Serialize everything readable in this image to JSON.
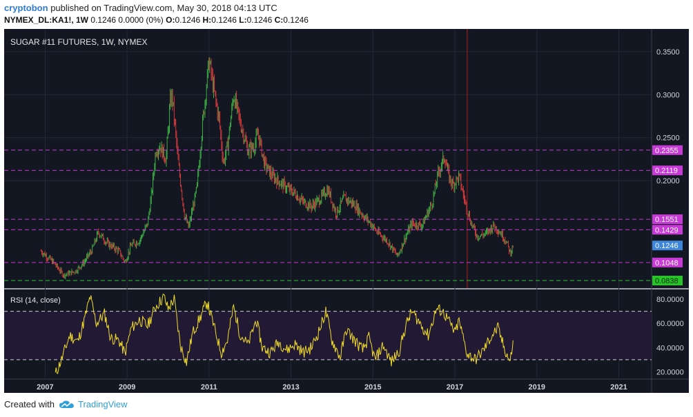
{
  "header": {
    "author": "cryptobon",
    "published": "published on TradingView.com, May 30, 2018 04:13 UTC",
    "symbol": "NYMEX_DL:KA1!, 1W",
    "change": "0.1246 0.0000 (0%)",
    "o_label": "O:",
    "o_value": "0.1246",
    "h_label": "H:",
    "h_value": "0.1246",
    "l_label": "L:",
    "l_value": "0.1246",
    "c_label": "C:",
    "c_value": "0.1246"
  },
  "footer": {
    "created_with": "Created with",
    "brand": "TradingView",
    "logo_icon": "tradingview-cloud-icon"
  },
  "colors": {
    "background": "#131722",
    "rsi_band": "#221a35",
    "bull": "#3cb043",
    "bear": "#d43a3a",
    "level": "#c83ad6",
    "support": "#29c429",
    "rsi_line": "#f2dd2a",
    "price_tag": "#3d86d9",
    "vertical_marker": "#b01e1e",
    "grid": "#232838",
    "axis_text": "#d1d4dc"
  },
  "chart_data": [
    {
      "type": "candlestick",
      "title": "SUGAR #11 FUTURES, 1W, NYMEX",
      "x_range": [
        2006.0,
        2021.8
      ],
      "ylim": [
        0.075,
        0.37
      ],
      "x_ticks": [
        "2007",
        "2009",
        "2011",
        "2013",
        "2015",
        "2017",
        "2019",
        "2021"
      ],
      "y_ticks": [
        "0.3500",
        "0.3000",
        "0.2500",
        "0.2000"
      ],
      "levels": [
        {
          "value": 0.2355,
          "label": "0.2355",
          "style": "dashed",
          "color": "#c83ad6"
        },
        {
          "value": 0.2119,
          "label": "0.2119",
          "style": "dashed",
          "color": "#c83ad6"
        },
        {
          "value": 0.1551,
          "label": "0.1551",
          "style": "dashed",
          "color": "#c83ad6"
        },
        {
          "value": 0.1429,
          "label": "0.1429",
          "style": "dashed",
          "color": "#c83ad6"
        },
        {
          "value": 0.1048,
          "label": "0.1048",
          "style": "dashed",
          "color": "#c83ad6"
        },
        {
          "value": 0.0838,
          "label": "0.0838",
          "style": "dashed",
          "color": "#29c429"
        }
      ],
      "last_price": {
        "value": 0.1246,
        "label": "0.1246"
      },
      "vertical_marker_x": 2017.3,
      "close_path": [
        [
          2006.9,
          0.118
        ],
        [
          2007.2,
          0.105
        ],
        [
          2007.45,
          0.09
        ],
        [
          2007.75,
          0.095
        ],
        [
          2007.95,
          0.105
        ],
        [
          2008.15,
          0.12
        ],
        [
          2008.3,
          0.14
        ],
        [
          2008.5,
          0.128
        ],
        [
          2008.8,
          0.118
        ],
        [
          2008.95,
          0.105
        ],
        [
          2009.1,
          0.125
        ],
        [
          2009.3,
          0.13
        ],
        [
          2009.5,
          0.15
        ],
        [
          2009.6,
          0.185
        ],
        [
          2009.7,
          0.235
        ],
        [
          2009.8,
          0.24
        ],
        [
          2009.95,
          0.225
        ],
        [
          2010.05,
          0.29
        ],
        [
          2010.1,
          0.3
        ],
        [
          2010.25,
          0.22
        ],
        [
          2010.4,
          0.16
        ],
        [
          2010.5,
          0.145
        ],
        [
          2010.7,
          0.19
        ],
        [
          2010.85,
          0.27
        ],
        [
          2011.0,
          0.34
        ],
        [
          2011.1,
          0.31
        ],
        [
          2011.25,
          0.27
        ],
        [
          2011.35,
          0.22
        ],
        [
          2011.45,
          0.24
        ],
        [
          2011.6,
          0.3
        ],
        [
          2011.75,
          0.27
        ],
        [
          2011.95,
          0.235
        ],
        [
          2012.1,
          0.24
        ],
        [
          2012.2,
          0.255
        ],
        [
          2012.35,
          0.22
        ],
        [
          2012.55,
          0.205
        ],
        [
          2012.8,
          0.195
        ],
        [
          2013.1,
          0.185
        ],
        [
          2013.3,
          0.175
        ],
        [
          2013.5,
          0.17
        ],
        [
          2013.7,
          0.178
        ],
        [
          2013.9,
          0.19
        ],
        [
          2014.1,
          0.162
        ],
        [
          2014.3,
          0.18
        ],
        [
          2014.55,
          0.172
        ],
        [
          2014.75,
          0.16
        ],
        [
          2014.95,
          0.15
        ],
        [
          2015.1,
          0.14
        ],
        [
          2015.35,
          0.13
        ],
        [
          2015.6,
          0.112
        ],
        [
          2015.8,
          0.135
        ],
        [
          2015.95,
          0.15
        ],
        [
          2016.2,
          0.148
        ],
        [
          2016.45,
          0.175
        ],
        [
          2016.6,
          0.21
        ],
        [
          2016.75,
          0.228
        ],
        [
          2016.85,
          0.205
        ],
        [
          2016.95,
          0.195
        ],
        [
          2017.1,
          0.205
        ],
        [
          2017.25,
          0.175
        ],
        [
          2017.4,
          0.15
        ],
        [
          2017.55,
          0.135
        ],
        [
          2017.75,
          0.138
        ],
        [
          2017.95,
          0.148
        ],
        [
          2018.1,
          0.14
        ],
        [
          2018.25,
          0.13
        ],
        [
          2018.35,
          0.116
        ],
        [
          2018.42,
          0.1246
        ]
      ]
    },
    {
      "type": "line",
      "title": "RSI (14, close)",
      "x_range": [
        2006.0,
        2021.8
      ],
      "ylim": [
        14,
        88
      ],
      "y_ticks": [
        "80.0000",
        "60.0000",
        "40.0000",
        "20.0000"
      ],
      "bands": [
        70,
        30
      ],
      "series": [
        {
          "values": [
            [
              2007.25,
              18
            ],
            [
              2007.4,
              30
            ],
            [
              2007.6,
              50
            ],
            [
              2007.8,
              45
            ],
            [
              2007.95,
              62
            ],
            [
              2008.1,
              82
            ],
            [
              2008.25,
              60
            ],
            [
              2008.45,
              68
            ],
            [
              2008.6,
              48
            ],
            [
              2008.8,
              46
            ],
            [
              2008.95,
              35
            ],
            [
              2009.1,
              56
            ],
            [
              2009.3,
              63
            ],
            [
              2009.5,
              58
            ],
            [
              2009.7,
              74
            ],
            [
              2009.9,
              82
            ],
            [
              2010.0,
              72
            ],
            [
              2010.15,
              80
            ],
            [
              2010.3,
              42
            ],
            [
              2010.45,
              28
            ],
            [
              2010.6,
              52
            ],
            [
              2010.8,
              66
            ],
            [
              2010.95,
              78
            ],
            [
              2011.1,
              60
            ],
            [
              2011.3,
              36
            ],
            [
              2011.45,
              46
            ],
            [
              2011.6,
              74
            ],
            [
              2011.75,
              52
            ],
            [
              2011.95,
              42
            ],
            [
              2012.15,
              63
            ],
            [
              2012.3,
              40
            ],
            [
              2012.5,
              36
            ],
            [
              2012.7,
              45
            ],
            [
              2012.9,
              38
            ],
            [
              2013.1,
              43
            ],
            [
              2013.3,
              36
            ],
            [
              2013.5,
              40
            ],
            [
              2013.7,
              55
            ],
            [
              2013.85,
              70
            ],
            [
              2014.0,
              46
            ],
            [
              2014.2,
              32
            ],
            [
              2014.35,
              55
            ],
            [
              2014.55,
              46
            ],
            [
              2014.75,
              38
            ],
            [
              2014.9,
              48
            ],
            [
              2015.05,
              30
            ],
            [
              2015.25,
              42
            ],
            [
              2015.45,
              28
            ],
            [
              2015.65,
              38
            ],
            [
              2015.8,
              58
            ],
            [
              2015.95,
              70
            ],
            [
              2016.15,
              60
            ],
            [
              2016.35,
              50
            ],
            [
              2016.55,
              72
            ],
            [
              2016.7,
              70
            ],
            [
              2016.85,
              62
            ],
            [
              2017.0,
              52
            ],
            [
              2017.1,
              62
            ],
            [
              2017.3,
              35
            ],
            [
              2017.5,
              30
            ],
            [
              2017.7,
              38
            ],
            [
              2017.9,
              50
            ],
            [
              2018.05,
              56
            ],
            [
              2018.2,
              40
            ],
            [
              2018.35,
              28
            ],
            [
              2018.42,
              46
            ]
          ]
        }
      ]
    }
  ]
}
